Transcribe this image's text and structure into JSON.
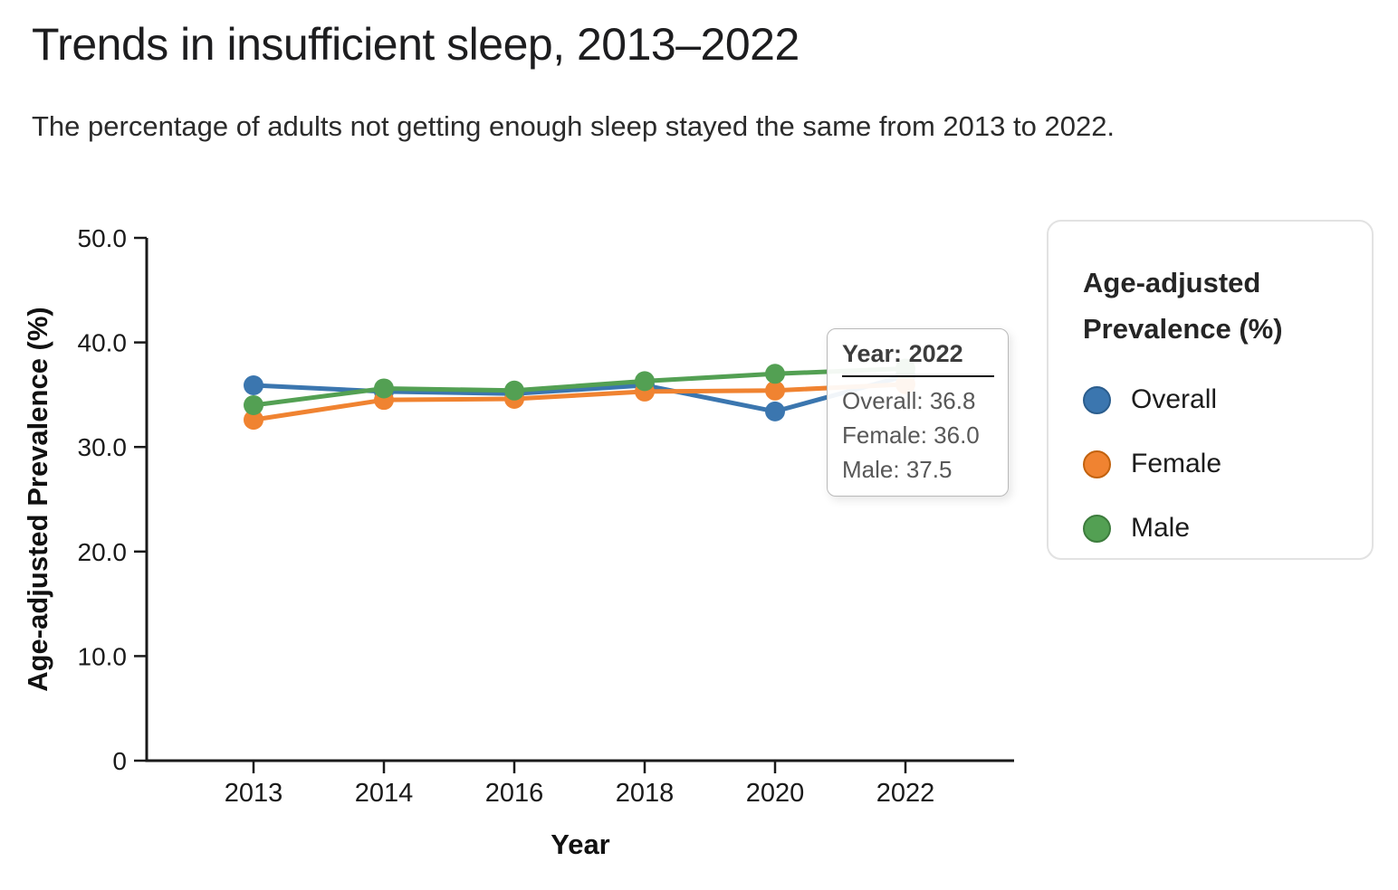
{
  "header": {
    "title": "Trends in insufficient sleep, 2013–2022",
    "subtitle": "The percentage of adults not getting enough sleep stayed the same from 2013 to 2022."
  },
  "chart_data": {
    "type": "line",
    "x": [
      2013,
      2014,
      2016,
      2018,
      2020,
      2022
    ],
    "x_tick_labels": [
      "2013",
      "2014",
      "2016",
      "2018",
      "2020",
      "2022"
    ],
    "xlabel": "Year",
    "ylabel": "Age-adjusted Prevalence (%)",
    "ylim": [
      0,
      50
    ],
    "y_ticks": [
      0,
      10,
      20,
      30,
      40,
      50
    ],
    "y_tick_labels": [
      "0",
      "10.0",
      "20.0",
      "30.0",
      "40.0",
      "50.0"
    ],
    "grid": false,
    "legend_position": "right",
    "series": [
      {
        "name": "Overall",
        "color": "#3b76af",
        "edge_color": "#2b5d8d",
        "values": [
          35.9,
          35.3,
          35.1,
          35.9,
          33.4,
          36.8
        ]
      },
      {
        "name": "Female",
        "color": "#f08331",
        "edge_color": "#c2620e",
        "values": [
          32.6,
          34.5,
          34.6,
          35.3,
          35.4,
          36.0
        ]
      },
      {
        "name": "Male",
        "color": "#53a053",
        "edge_color": "#3d7c3d",
        "values": [
          34.0,
          35.6,
          35.4,
          36.3,
          37.0,
          37.5
        ]
      }
    ]
  },
  "legend": {
    "title": "Age-adjusted Prevalence (%)",
    "items": [
      {
        "label": "Overall",
        "color": "#3b76af",
        "edge_color": "#2b5d8d"
      },
      {
        "label": "Female",
        "color": "#f08331",
        "edge_color": "#c2620e"
      },
      {
        "label": "Male",
        "color": "#53a053",
        "edge_color": "#3d7c3d"
      }
    ]
  },
  "tooltip": {
    "year_label": "Year:",
    "year_value": "2022",
    "rows": [
      {
        "label": "Overall:",
        "value": "36.8"
      },
      {
        "label": "Female:",
        "value": "36.0"
      },
      {
        "label": "Male:",
        "value": "37.5"
      }
    ]
  }
}
